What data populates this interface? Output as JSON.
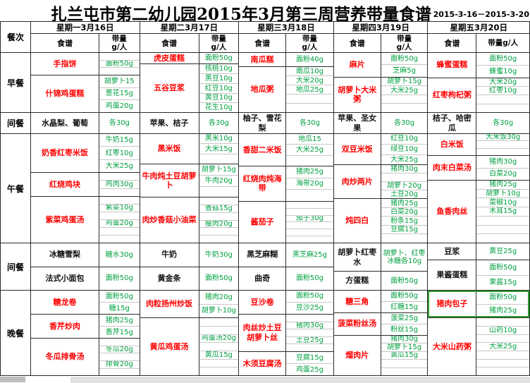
{
  "title": "扎兰屯市第二幼儿园2015年3月第三周营养带量食谱",
  "date_range": "2015-3-16－2015-3-20",
  "colors": {
    "dish_red": "#ff0000",
    "amount_green": "#00a040",
    "selection_green": "#2f9e2f",
    "grid_line": "#2b2b2b"
  },
  "header": {
    "meal_col": "餐次",
    "menu_col": "食谱",
    "amount_col": "带量\ng/人",
    "amount_col_inline": "带量g/人",
    "days": [
      "星期一3月16日",
      "星期二3月17日",
      "星期三3月18日",
      "星期四3月19日",
      "星期五3月20日"
    ]
  },
  "meals": [
    {
      "label": "早餐",
      "name_color": "red",
      "days": [
        [
          {
            "name": "手指饼",
            "amounts": [
              "",
              "面粉50g",
              ""
            ]
          },
          {
            "name": "什锦鸡蛋糕",
            "amounts": [
              "胡萝卜15",
              "葱花15g",
              "鸡蛋20g"
            ]
          }
        ],
        [
          {
            "name": "虎皮蛋糕",
            "amounts": [
              "面粉50g"
            ]
          },
          {
            "name": "五谷豆浆",
            "amounts": [
              "核桃10g",
              "黑豆10g",
              "红豆10g",
              "黄豆10g",
              "花生10g"
            ]
          }
        ],
        [
          {
            "name": "南瓜糕",
            "amounts": [
              "面粉40g"
            ]
          },
          {
            "name": "地瓜粥",
            "amounts": [
              "南瓜10g",
              "大米20g",
              "地瓜25g",
              "",
              ""
            ]
          }
        ],
        [
          {
            "name": "麻片",
            "amounts": [
              "面粉50g",
              "芝麻5g"
            ]
          },
          {
            "name": "胡萝卜大米粥",
            "amounts": [
              "胡萝卜15g",
              "大米25g",
              "",
              ""
            ]
          }
        ],
        [
          {
            "name": "蜂蜜蛋糕",
            "amounts": [
              "面粉50g",
              "蜂蜜10g"
            ]
          },
          {
            "name": "红枣枸杞粥",
            "amounts": [
              "大米20g",
              "红枣10g",
              "",
              ""
            ]
          }
        ]
      ]
    },
    {
      "label": "间餐",
      "name_color": "black",
      "days": [
        [
          {
            "name": "水晶梨、葡萄",
            "amounts": [
              "各30g"
            ]
          }
        ],
        [
          {
            "name": "苹果、桔子",
            "amounts": [
              "各30g"
            ]
          }
        ],
        [
          {
            "name": "柚子、雪花梨",
            "amounts": [
              "各30g"
            ]
          }
        ],
        [
          {
            "name": "苹果、圣女果",
            "amounts": [
              "各30g"
            ]
          }
        ],
        [
          {
            "name": "桔子、哈密瓜",
            "amounts": [
              "各30g"
            ]
          }
        ]
      ]
    },
    {
      "label": "午餐",
      "name_color": "red",
      "days": [
        [
          {
            "name": "奶香红枣米饭",
            "amounts": [
              "牛奶15g",
              "红枣10g",
              "大米25g"
            ]
          },
          {
            "name": "红烧鸡块",
            "amounts": [
              "",
              "鸡肉30g",
              ""
            ]
          },
          {
            "name": "紫菜鸡蛋汤",
            "amounts": [
              "",
              "紫菜10g",
              "",
              "鸡蛋20g",
              "",
              ""
            ]
          }
        ],
        [
          {
            "name": "黑米饭",
            "amounts": [
              "黑米10g",
              "大米15g",
              ""
            ]
          },
          {
            "name": "牛肉炖土豆胡萝卜",
            "amounts": [
              "胡萝卜15g",
              "牛肉20g",
              ""
            ]
          },
          {
            "name": "肉炒香菇小油菜",
            "amounts": [
              "",
              "香菇15g",
              "",
              "瘦肉20g",
              "",
              ""
            ]
          }
        ],
        [
          {
            "name": "香甜二米饭",
            "amounts": [
              "地瓜15",
              "大米25g",
              ""
            ]
          },
          {
            "name": "红烧肉炖海带",
            "amounts": [
              "猪肉25g",
              "海带20g",
              ""
            ]
          },
          {
            "name": "酱茄子",
            "amounts": [
              "",
              "",
              "茄子30g",
              "",
              "",
              ""
            ]
          }
        ],
        [
          {
            "name": "双豆米饭",
            "amounts": [
              "红豆10g",
              "绿豆10g",
              "大米25g"
            ]
          },
          {
            "name": "肉炒两片",
            "amounts": [
              "猪肉30g",
              "",
              "胡萝卜20g",
              "土豆20g"
            ]
          },
          {
            "name": "炖四白",
            "amounts": [
              "猪肉25g",
              "白菜20g",
              "粉条15g",
              "豆腐15g",
              ""
            ]
          }
        ],
        [
          {
            "name": "白米饭",
            "amounts": [
              "大米饭30g",
              "",
              ""
            ]
          },
          {
            "name": "肉末白菜汤",
            "amounts": [
              "猪肉30g",
              "白菜20g"
            ]
          },
          {
            "name": "鱼香肉丝",
            "amounts": [
              "猪肉25g",
              "胡萝卜10g",
              "菜椒10g",
              "木耳15g",
              "",
              "",
              ""
            ]
          }
        ]
      ]
    },
    {
      "label": "间餐",
      "name_color": "black",
      "days": [
        [
          {
            "name": "冰糖雪梨",
            "amounts": [
              "糖水30g"
            ]
          },
          {
            "name": "法式小面包",
            "amounts": [
              "面粉50g"
            ]
          }
        ],
        [
          {
            "name": "牛奶",
            "amounts": [
              "牛奶30g"
            ]
          },
          {
            "name": "黄金条",
            "amounts": [
              "面粉50g"
            ]
          }
        ],
        [
          {
            "name": "黑芝麻糊",
            "amounts": [
              "黑芝麻25g"
            ]
          },
          {
            "name": "曲奇",
            "amounts": [
              "面粉50g"
            ]
          }
        ],
        [
          {
            "name": "胡萝卜红枣水",
            "amounts": [
              "胡萝卜、红枣冰糖各10g"
            ]
          },
          {
            "name": "方蛋糕",
            "amounts": [
              "面粉50g"
            ]
          }
        ],
        [
          {
            "name": "豆浆",
            "amounts": [
              "黄豆25g"
            ]
          },
          {
            "name": "果酱蛋糕",
            "amounts": [
              "面粉50g",
              "果酱15g"
            ]
          }
        ]
      ]
    },
    {
      "label": "晚餐",
      "name_color": "red",
      "days": [
        [
          {
            "name": "糖龙卷",
            "amounts": [
              "面粉50g",
              "糖15g"
            ]
          },
          {
            "name": "香芹炒肉",
            "amounts": [
              "猪肉25g",
              "香芹15g"
            ]
          },
          {
            "name": "冬瓜排骨汤",
            "amounts": [
              "",
              "冬瓜20g",
              "",
              "排骨20g",
              ""
            ]
          }
        ],
        [
          {
            "name": "肉粒扬州炒饭",
            "amounts": [
              "猪肉20g",
              "胡萝卜10g"
            ]
          },
          {
            "name": "黄瓜鸡蛋汤",
            "amounts": [
              "",
              "",
              "鸡蛋汤20g",
              "",
              "黄瓜15g",
              "",
              ""
            ]
          }
        ],
        [
          {
            "name": "豆沙卷",
            "amounts": [
              "面粉50g",
              "豆沙25g"
            ]
          },
          {
            "name": "肉丝炒土豆胡萝卜丝",
            "amounts": [
              "",
              "猪肉30g",
              "",
              "土豆25g",
              ""
            ]
          },
          {
            "name": "木须豆腐汤",
            "amounts": [
              "豆腐15g",
              "鸡蛋25g"
            ]
          }
        ],
        [
          {
            "name": "糖三角",
            "amounts": [
              "面粉50g",
              "红糖15g"
            ]
          },
          {
            "name": "菠菜粉丝汤",
            "amounts": [
              "菠菜25g",
              "粉丝15g"
            ]
          },
          {
            "name": "熘肉片",
            "amounts": [
              "猪肉30g",
              "胡萝卜15g",
              "黄瓜15g",
              "",
              ""
            ]
          }
        ],
        [
          {
            "name": "猪肉包子",
            "selected": true,
            "amounts": [
              "面粉50g",
              "猪肉25g"
            ]
          },
          {
            "name": "大米山药粥",
            "amounts": [
              "",
              "山药10g",
              "",
              "大米25g",
              "",
              "",
              ""
            ]
          }
        ]
      ]
    }
  ]
}
